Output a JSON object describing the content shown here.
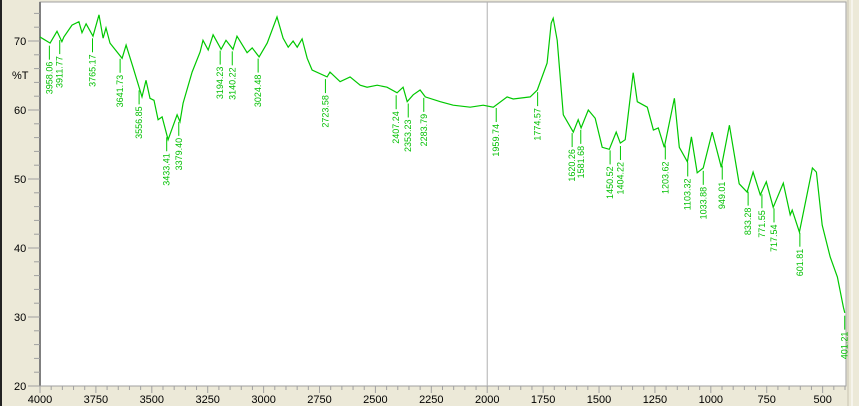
{
  "chart_data": {
    "type": "line",
    "title": "",
    "xlabel": "",
    "ylabel": "%T",
    "xlim": [
      4000,
      400
    ],
    "ylim": [
      20,
      75.6
    ],
    "x_reversed": true,
    "x_ticks": [
      4000,
      3750,
      3500,
      3250,
      3000,
      2750,
      2500,
      2250,
      2000,
      1750,
      1500,
      1250,
      1000,
      750,
      500
    ],
    "y_ticks": [
      20,
      30,
      40,
      50,
      60,
      70
    ],
    "grid": false,
    "divider_at": 2000,
    "line_color": "#00c800",
    "series": [
      {
        "points": [
          [
            4000,
            70.6
          ],
          [
            3991,
            70.4
          ],
          [
            3955,
            69.7
          ],
          [
            3924,
            71.4
          ],
          [
            3902,
            69.9
          ],
          [
            3893,
            70.6
          ],
          [
            3857,
            72.3
          ],
          [
            3826,
            72.8
          ],
          [
            3812,
            71.2
          ],
          [
            3794,
            72.5
          ],
          [
            3763,
            70.7
          ],
          [
            3736,
            73.8
          ],
          [
            3718,
            70.4
          ],
          [
            3705,
            71.9
          ],
          [
            3687,
            69.7
          ],
          [
            3633,
            67.5
          ],
          [
            3615,
            69.4
          ],
          [
            3584,
            66.2
          ],
          [
            3544,
            61.9
          ],
          [
            3526,
            64.3
          ],
          [
            3508,
            61.7
          ],
          [
            3490,
            61.4
          ],
          [
            3472,
            58.6
          ],
          [
            3454,
            59.0
          ],
          [
            3427,
            55.7
          ],
          [
            3387,
            59.3
          ],
          [
            3374,
            58.3
          ],
          [
            3360,
            61.0
          ],
          [
            3320,
            65.5
          ],
          [
            3284,
            68.4
          ],
          [
            3271,
            70.1
          ],
          [
            3248,
            68.7
          ],
          [
            3226,
            70.9
          ],
          [
            3190,
            68.8
          ],
          [
            3168,
            70.1
          ],
          [
            3137,
            68.8
          ],
          [
            3119,
            70.7
          ],
          [
            3074,
            68.3
          ],
          [
            3051,
            69.0
          ],
          [
            3020,
            67.7
          ],
          [
            2984,
            69.7
          ],
          [
            2940,
            73.5
          ],
          [
            2913,
            70.4
          ],
          [
            2890,
            69.1
          ],
          [
            2868,
            70.0
          ],
          [
            2850,
            69.1
          ],
          [
            2828,
            70.3
          ],
          [
            2805,
            67.5
          ],
          [
            2783,
            65.8
          ],
          [
            2716,
            64.8
          ],
          [
            2703,
            65.5
          ],
          [
            2658,
            64.1
          ],
          [
            2613,
            64.8
          ],
          [
            2568,
            63.6
          ],
          [
            2537,
            63.3
          ],
          [
            2492,
            63.6
          ],
          [
            2448,
            63.3
          ],
          [
            2403,
            62.5
          ],
          [
            2376,
            63.3
          ],
          [
            2358,
            61.2
          ],
          [
            2331,
            62.2
          ],
          [
            2300,
            62.9
          ],
          [
            2277,
            61.9
          ],
          [
            2210,
            61.2
          ],
          [
            2152,
            60.7
          ],
          [
            2076,
            60.4
          ],
          [
            2018,
            60.7
          ],
          [
            1973,
            60.4
          ],
          [
            1911,
            61.9
          ],
          [
            1884,
            61.6
          ],
          [
            1808,
            61.9
          ],
          [
            1776,
            62.9
          ],
          [
            1732,
            66.8
          ],
          [
            1714,
            72.6
          ],
          [
            1705,
            73.3
          ],
          [
            1687,
            70.1
          ],
          [
            1660,
            59.3
          ],
          [
            1615,
            56.8
          ],
          [
            1593,
            58.6
          ],
          [
            1580,
            57.4
          ],
          [
            1548,
            60.0
          ],
          [
            1517,
            58.8
          ],
          [
            1486,
            54.6
          ],
          [
            1454,
            54.3
          ],
          [
            1423,
            56.8
          ],
          [
            1405,
            55.2
          ],
          [
            1383,
            55.7
          ],
          [
            1347,
            65.4
          ],
          [
            1329,
            61.2
          ],
          [
            1284,
            60.4
          ],
          [
            1257,
            57.1
          ],
          [
            1235,
            57.4
          ],
          [
            1208,
            54.6
          ],
          [
            1163,
            61.7
          ],
          [
            1141,
            54.6
          ],
          [
            1105,
            52.5
          ],
          [
            1087,
            56.1
          ],
          [
            1061,
            50.9
          ],
          [
            1034,
            51.6
          ],
          [
            994,
            56.8
          ],
          [
            953,
            51.7
          ],
          [
            917,
            57.8
          ],
          [
            873,
            49.3
          ],
          [
            838,
            48.1
          ],
          [
            811,
            51.0
          ],
          [
            779,
            47.7
          ],
          [
            752,
            49.6
          ],
          [
            721,
            45.9
          ],
          [
            676,
            49.4
          ],
          [
            645,
            44.8
          ],
          [
            636,
            45.5
          ],
          [
            604,
            42.3
          ],
          [
            546,
            51.6
          ],
          [
            528,
            51.0
          ],
          [
            502,
            43.3
          ],
          [
            466,
            38.7
          ],
          [
            434,
            35.8
          ],
          [
            407,
            31.4
          ],
          [
            401,
            30.6
          ]
        ]
      }
    ],
    "peak_labels": [
      "3958.06",
      "3911.77",
      "3765.17",
      "3641.73",
      "3556.85",
      "3433.41",
      "3379.40",
      "3194.23",
      "3140.22",
      "3024.48",
      "2723.58",
      "2407.24",
      "2353.23",
      "2283.79",
      "1959.74",
      "1774.57",
      "1620.26",
      "1581.68",
      "1450.52",
      "1404.22",
      "1203.62",
      "1103.32",
      "1033.88",
      "949.01",
      "833.28",
      "771.55",
      "717.54",
      "601.81",
      "401.21"
    ]
  }
}
